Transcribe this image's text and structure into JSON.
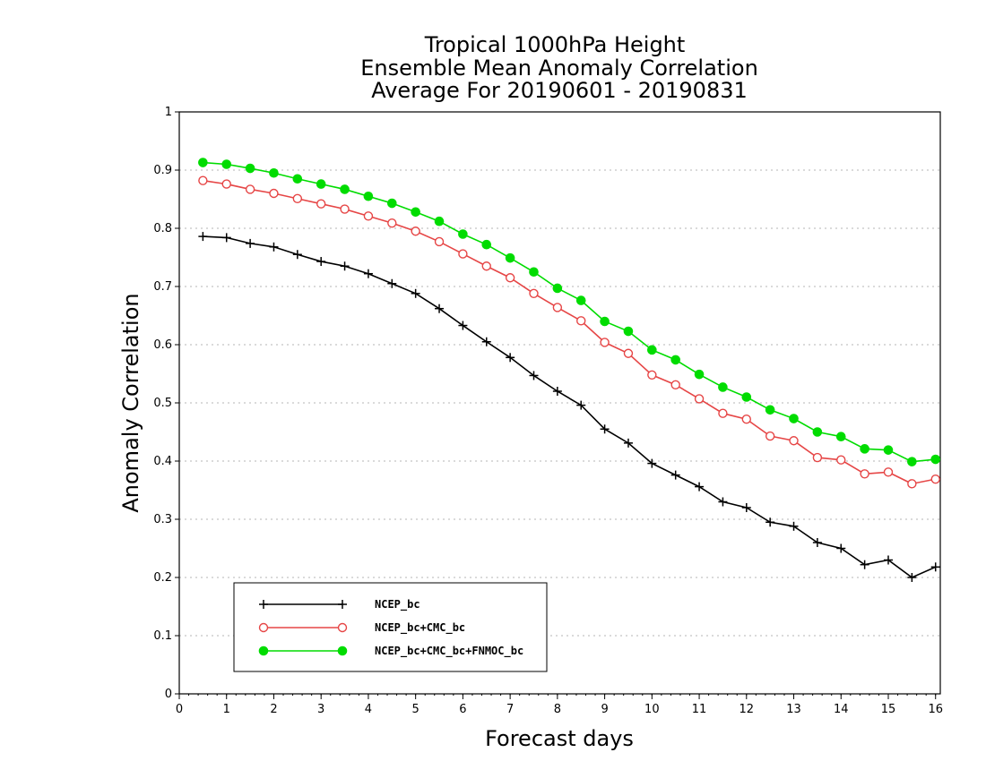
{
  "chart_data": {
    "type": "line",
    "title_lines": [
      "Tropical 1000hPa Height",
      "Ensemble Mean Anomaly Correlation",
      "Average For 20190601 - 20190831"
    ],
    "xlabel": "Forecast days",
    "ylabel": "Anomaly Correlation",
    "xlim": [
      0,
      16.1
    ],
    "ylim": [
      0,
      1
    ],
    "x_ticks": [
      "0",
      "1",
      "2",
      "3",
      "4",
      "5",
      "6",
      "7",
      "8",
      "9",
      "10",
      "11",
      "12",
      "13",
      "14",
      "15",
      "16"
    ],
    "y_ticks": [
      "0",
      "0.1",
      "0.2",
      "0.3",
      "0.4",
      "0.5",
      "0.6",
      "0.7",
      "0.8",
      "0.9",
      "1"
    ],
    "grid": true,
    "legend_position": "bottom-left",
    "x": [
      0.5,
      1,
      1.5,
      2,
      2.5,
      3,
      3.5,
      4,
      4.5,
      5,
      5.5,
      6,
      6.5,
      7,
      7.5,
      8,
      8.5,
      9,
      9.5,
      10,
      10.5,
      11,
      11.5,
      12,
      12.5,
      13,
      13.5,
      14,
      14.5,
      15,
      15.5,
      16
    ],
    "series": [
      {
        "name": "NCEP_bc",
        "color": "#000000",
        "marker": "plus",
        "values": [
          0.786,
          0.784,
          0.774,
          0.768,
          0.755,
          0.743,
          0.735,
          0.722,
          0.705,
          0.688,
          0.662,
          0.633,
          0.605,
          0.578,
          0.547,
          0.52,
          0.496,
          0.455,
          0.431,
          0.396,
          0.376,
          0.356,
          0.33,
          0.32,
          0.295,
          0.288,
          0.26,
          0.25,
          0.222,
          0.23,
          0.2,
          0.218
        ]
      },
      {
        "name": "NCEP_bc+CMC_bc",
        "color": "#e64646",
        "marker": "open-circle",
        "values": [
          0.882,
          0.876,
          0.867,
          0.86,
          0.851,
          0.842,
          0.833,
          0.821,
          0.809,
          0.795,
          0.777,
          0.756,
          0.735,
          0.715,
          0.688,
          0.664,
          0.641,
          0.604,
          0.585,
          0.548,
          0.531,
          0.507,
          0.482,
          0.472,
          0.443,
          0.435,
          0.406,
          0.402,
          0.378,
          0.381,
          0.361,
          0.369
        ]
      },
      {
        "name": "NCEP_bc+CMC_bc+FNMOC_bc",
        "color": "#00dc00",
        "marker": "filled-circle",
        "values": [
          0.913,
          0.91,
          0.903,
          0.895,
          0.885,
          0.876,
          0.867,
          0.855,
          0.843,
          0.828,
          0.812,
          0.79,
          0.772,
          0.749,
          0.725,
          0.697,
          0.676,
          0.64,
          0.623,
          0.591,
          0.574,
          0.549,
          0.527,
          0.51,
          0.488,
          0.473,
          0.45,
          0.442,
          0.421,
          0.419,
          0.399,
          0.403
        ]
      }
    ]
  }
}
